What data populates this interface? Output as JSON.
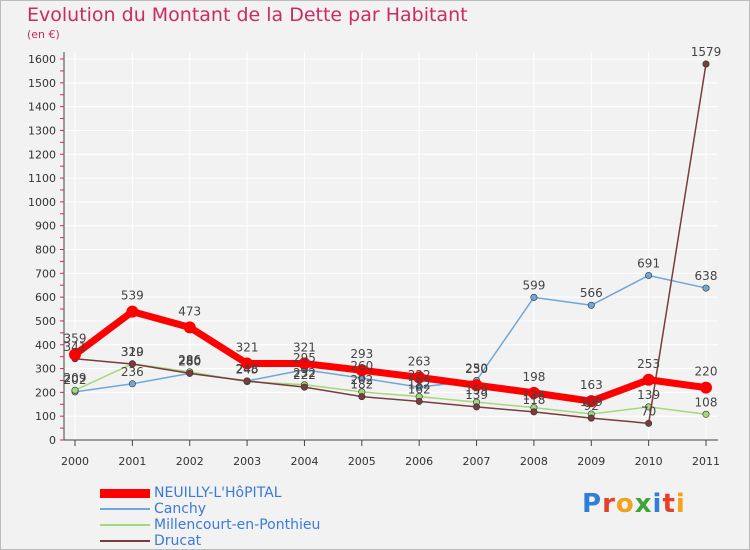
{
  "title": "Evolution du Montant de la Dette par Habitant",
  "subtitle": "(en €)",
  "logo": {
    "text": "Proxiti",
    "letters": [
      {
        "ch": "P",
        "color": "#2f7fd8"
      },
      {
        "ch": "r",
        "color": "#e4412b"
      },
      {
        "ch": "o",
        "color": "#f4a11c"
      },
      {
        "ch": "x",
        "color": "#3fa535"
      },
      {
        "ch": "i",
        "color": "#2f7fd8"
      },
      {
        "ch": "t",
        "color": "#e4412b"
      },
      {
        "ch": "i",
        "color": "#f4a11c"
      }
    ]
  },
  "chart_data": {
    "type": "line",
    "title": "Evolution du Montant de la Dette par Habitant",
    "subtitle": "(en €)",
    "x": [
      "2000",
      "2001",
      "2002",
      "2003",
      "2004",
      "2005",
      "2006",
      "2007",
      "2008",
      "2009",
      "2010",
      "2011"
    ],
    "ylim": [
      0,
      1600
    ],
    "yticks": [
      "0",
      "100",
      "200",
      "300",
      "400",
      "500",
      "600",
      "700",
      "800",
      "900",
      "1000",
      "1100",
      "1200",
      "1300",
      "1400",
      "1500",
      "1600"
    ],
    "grid": true,
    "legend_position": "bottom-left",
    "series": [
      {
        "name": "NEUILLY-L'HôPITAL",
        "color": "#ff0000",
        "width": "thick",
        "values": [
          359,
          539,
          473,
          321,
          321,
          293,
          263,
          230,
          198,
          163,
          253,
          220
        ],
        "labels": [
          "359",
          "539",
          "473",
          "321",
          "321",
          "293",
          "263",
          "230",
          "198",
          "163",
          "253",
          "220"
        ]
      },
      {
        "name": "Canchy",
        "color": "#6fa7d8",
        "width": "thin",
        "values": [
          202,
          236,
          280,
          248,
          295,
          260,
          222,
          250,
          599,
          566,
          691,
          638
        ],
        "labels": [
          "202",
          "236",
          "280",
          "248",
          "295",
          "260",
          "222",
          "250",
          "599",
          "566",
          "691",
          "638"
        ]
      },
      {
        "name": "Millencourt-en-Ponthieu",
        "color": "#a3d97a",
        "width": "thin",
        "values": [
          209,
          320,
          286,
          245,
          232,
          202,
          182,
          159,
          136,
          109,
          139,
          108
        ],
        "labels": [
          "209",
          "320",
          "286",
          "245",
          "232",
          "202",
          "182",
          "159",
          "136",
          "109",
          "139",
          "108"
        ]
      },
      {
        "name": "Drucat",
        "color": "#7a3c3c",
        "width": "thin",
        "values": [
          341,
          319,
          280,
          248,
          222,
          182,
          162,
          139,
          118,
          92,
          70,
          1579
        ],
        "labels": [
          "341",
          "319",
          "280",
          "248",
          "222",
          "182",
          "162",
          "139",
          "118",
          "92",
          "70",
          "1579"
        ]
      }
    ]
  }
}
